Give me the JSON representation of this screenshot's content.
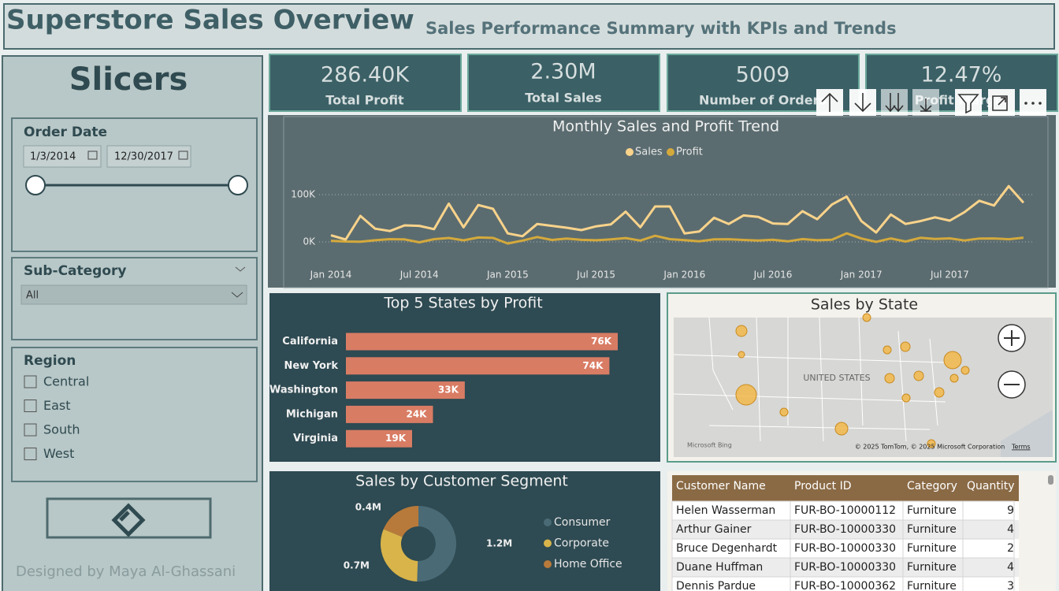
{
  "header": {
    "title": "Superstore Sales Overview",
    "subtitle": "Sales Performance Summary with KPIs and Trends"
  },
  "slicers": {
    "title": "Slicers",
    "order_date": {
      "label": "Order Date",
      "start": "1/3/2014",
      "end": "12/30/2017"
    },
    "sub_category": {
      "label": "Sub-Category",
      "value": "All"
    },
    "region": {
      "label": "Region",
      "options": [
        "Central",
        "East",
        "South",
        "West"
      ]
    },
    "credit": "Designed by Maya Al-Ghassani"
  },
  "kpis": [
    {
      "value": "286.40K",
      "label": "Total Profit"
    },
    {
      "value": "2.30M",
      "label": "Total Sales"
    },
    {
      "value": "5009",
      "label": "Number of Orders"
    },
    {
      "value": "12.47%",
      "label": "Profit Margin"
    }
  ],
  "chart_data": [
    {
      "type": "line",
      "title": "Monthly Sales and Profit Trend",
      "x": [
        "2014-01",
        "2014-02",
        "2014-03",
        "2014-04",
        "2014-05",
        "2014-06",
        "2014-07",
        "2014-08",
        "2014-09",
        "2014-10",
        "2014-11",
        "2014-12",
        "2015-01",
        "2015-02",
        "2015-03",
        "2015-04",
        "2015-05",
        "2015-06",
        "2015-07",
        "2015-08",
        "2015-09",
        "2015-10",
        "2015-11",
        "2015-12",
        "2016-01",
        "2016-02",
        "2016-03",
        "2016-04",
        "2016-05",
        "2016-06",
        "2016-07",
        "2016-08",
        "2016-09",
        "2016-10",
        "2016-11",
        "2016-12",
        "2017-01",
        "2017-02",
        "2017-03",
        "2017-04",
        "2017-05",
        "2017-06",
        "2017-07",
        "2017-08",
        "2017-09",
        "2017-10",
        "2017-11",
        "2017-12"
      ],
      "xticks": [
        {
          "value": "2014-01",
          "label": "Jan 2014"
        },
        {
          "value": "2014-07",
          "label": "Jul 2014"
        },
        {
          "value": "2015-01",
          "label": "Jan 2015"
        },
        {
          "value": "2015-07",
          "label": "Jul 2015"
        },
        {
          "value": "2016-01",
          "label": "Jan 2016"
        },
        {
          "value": "2016-07",
          "label": "Jul 2016"
        },
        {
          "value": "2017-01",
          "label": "Jan 2017"
        },
        {
          "value": "2017-07",
          "label": "Jul 2017"
        }
      ],
      "ylim": [
        -30000,
        170000
      ],
      "yticks": [
        {
          "value": 0,
          "label": "0K"
        },
        {
          "value": 100000,
          "label": "100K"
        }
      ],
      "grid": true,
      "series": [
        {
          "name": "Sales",
          "color": "#f9d38b",
          "values": [
            14000,
            5000,
            55000,
            28000,
            23000,
            35000,
            34000,
            27000,
            81000,
            31000,
            78000,
            70000,
            18000,
            12000,
            38000,
            34000,
            30000,
            25000,
            33000,
            37000,
            64000,
            31000,
            75000,
            75000,
            18000,
            22000,
            51000,
            38000,
            56000,
            53000,
            39000,
            38000,
            65000,
            48000,
            79000,
            96000,
            44000,
            20000,
            58000,
            38000,
            44000,
            52000,
            45000,
            63000,
            87000,
            77000,
            118000,
            83000
          ]
        },
        {
          "name": "Profit",
          "color": "#d4a93c",
          "values": [
            2400,
            900,
            500,
            3500,
            5800,
            5300,
            -800,
            5800,
            8300,
            3400,
            9300,
            8500,
            -3300,
            2800,
            10300,
            4200,
            7200,
            4400,
            3500,
            5400,
            8200,
            2800,
            13000,
            5800,
            3600,
            1300,
            5300,
            5700,
            4100,
            2800,
            4500,
            1100,
            6000,
            3500,
            4600,
            18100,
            7100,
            200,
            7400,
            900,
            8700,
            6200,
            7500,
            3000,
            7200,
            7400,
            5600,
            9000
          ]
        }
      ]
    },
    {
      "type": "bar",
      "orientation": "horizontal",
      "title": "Top 5 States by Profit",
      "categories": [
        "California",
        "New York",
        "Washington",
        "Michigan",
        "Virginia"
      ],
      "values": [
        76381,
        74039,
        33403,
        24463,
        18598
      ],
      "value_labels": [
        "76K",
        "74K",
        "33K",
        "24K",
        "19K"
      ],
      "color": "#d97c64"
    },
    {
      "type": "pie",
      "donut": true,
      "title": "Sales by Customer Segment",
      "categories": [
        "Consumer",
        "Corporate",
        "Home Office"
      ],
      "values": [
        1161401,
        706146,
        429653
      ],
      "value_labels": [
        "1.2M",
        "0.7M",
        "0.4M"
      ],
      "colors": [
        "#4a6b76",
        "#d9b44a",
        "#b87a3a"
      ]
    }
  ],
  "map": {
    "title": "Sales by State",
    "country_label": "UNITED STATES",
    "attribution": "© 2025 TomTom, © 2025 Microsoft Corporation",
    "terms": "Terms",
    "logo": "Microsoft Bing"
  },
  "table": {
    "columns": [
      "Customer Name",
      "Product ID",
      "Category",
      "Quantity"
    ],
    "rows": [
      [
        "Helen Wasserman",
        "FUR-BO-10000112",
        "Furniture",
        9
      ],
      [
        "Arthur Gainer",
        "FUR-BO-10000330",
        "Furniture",
        4
      ],
      [
        "Bruce Degenhardt",
        "FUR-BO-10000330",
        "Furniture",
        2
      ],
      [
        "Duane Huffman",
        "FUR-BO-10000330",
        "Furniture",
        4
      ],
      [
        "Dennis Pardue",
        "FUR-BO-10000362",
        "Furniture",
        3
      ]
    ]
  }
}
